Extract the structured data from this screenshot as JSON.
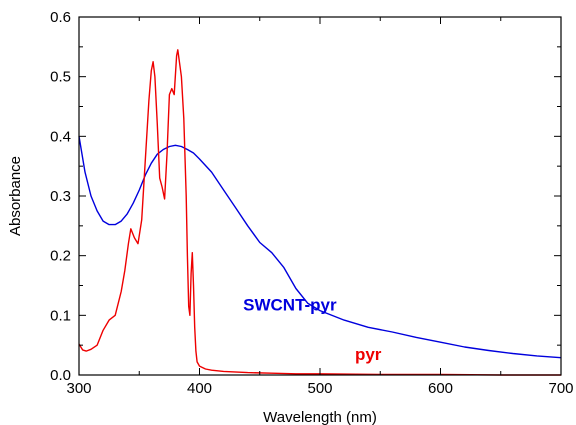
{
  "chart_data": {
    "type": "line",
    "title": "",
    "xlabel": "Wavelength (nm)",
    "ylabel": "Absorbance",
    "xlim": [
      300,
      700
    ],
    "ylim": [
      0.0,
      0.6
    ],
    "xticks": [
      300,
      400,
      500,
      600,
      700
    ],
    "xtick_labels": [
      "300",
      "400",
      "500",
      "600",
      "700"
    ],
    "yticks": [
      0.0,
      0.1,
      0.2,
      0.3,
      0.4,
      0.5,
      0.6
    ],
    "ytick_labels": [
      "0.0",
      "0.1",
      "0.2",
      "0.3",
      "0.4",
      "0.5",
      "0.6"
    ],
    "grid": false,
    "series": [
      {
        "name": "SWCNT-pyr",
        "color": "#0000dd",
        "x": [
          300,
          305,
          310,
          315,
          320,
          325,
          330,
          335,
          340,
          345,
          350,
          355,
          360,
          365,
          370,
          375,
          380,
          385,
          390,
          395,
          400,
          410,
          420,
          430,
          440,
          450,
          460,
          470,
          480,
          490,
          500,
          520,
          540,
          560,
          580,
          600,
          620,
          640,
          660,
          680,
          700
        ],
        "y": [
          0.4,
          0.34,
          0.3,
          0.275,
          0.258,
          0.252,
          0.252,
          0.258,
          0.27,
          0.288,
          0.31,
          0.335,
          0.355,
          0.37,
          0.378,
          0.383,
          0.385,
          0.383,
          0.378,
          0.372,
          0.362,
          0.34,
          0.31,
          0.28,
          0.25,
          0.222,
          0.205,
          0.18,
          0.145,
          0.12,
          0.108,
          0.092,
          0.08,
          0.072,
          0.063,
          0.055,
          0.047,
          0.041,
          0.036,
          0.032,
          0.029
        ]
      },
      {
        "name": "pyr",
        "color": "#ee0000",
        "x": [
          300,
          303,
          306,
          310,
          315,
          320,
          325,
          330,
          335,
          338,
          341,
          343,
          346,
          349,
          352,
          355,
          358,
          360,
          361.5,
          363,
          365,
          367,
          369,
          371,
          373,
          375,
          377,
          379,
          381,
          382,
          383,
          385,
          387,
          389,
          390,
          391,
          392,
          393,
          394,
          395,
          396,
          397,
          398,
          400,
          405,
          410,
          420,
          440,
          460,
          480,
          500,
          550,
          600,
          650,
          700
        ],
        "y": [
          0.052,
          0.042,
          0.04,
          0.043,
          0.05,
          0.075,
          0.092,
          0.1,
          0.14,
          0.175,
          0.22,
          0.245,
          0.23,
          0.22,
          0.26,
          0.36,
          0.46,
          0.51,
          0.525,
          0.5,
          0.42,
          0.33,
          0.315,
          0.295,
          0.37,
          0.47,
          0.48,
          0.47,
          0.535,
          0.545,
          0.53,
          0.5,
          0.43,
          0.3,
          0.2,
          0.115,
          0.1,
          0.17,
          0.205,
          0.15,
          0.08,
          0.04,
          0.022,
          0.015,
          0.01,
          0.008,
          0.006,
          0.004,
          0.003,
          0.002,
          0.002,
          0.001,
          0.001,
          0.0,
          0.0
        ]
      }
    ],
    "annotations": [
      {
        "text": "SWCNT-pyr",
        "x": 475,
        "y": 0.108,
        "color": "#0000dd"
      },
      {
        "text": "pyr",
        "x": 540,
        "y": 0.025,
        "color": "#ee0000"
      }
    ]
  }
}
